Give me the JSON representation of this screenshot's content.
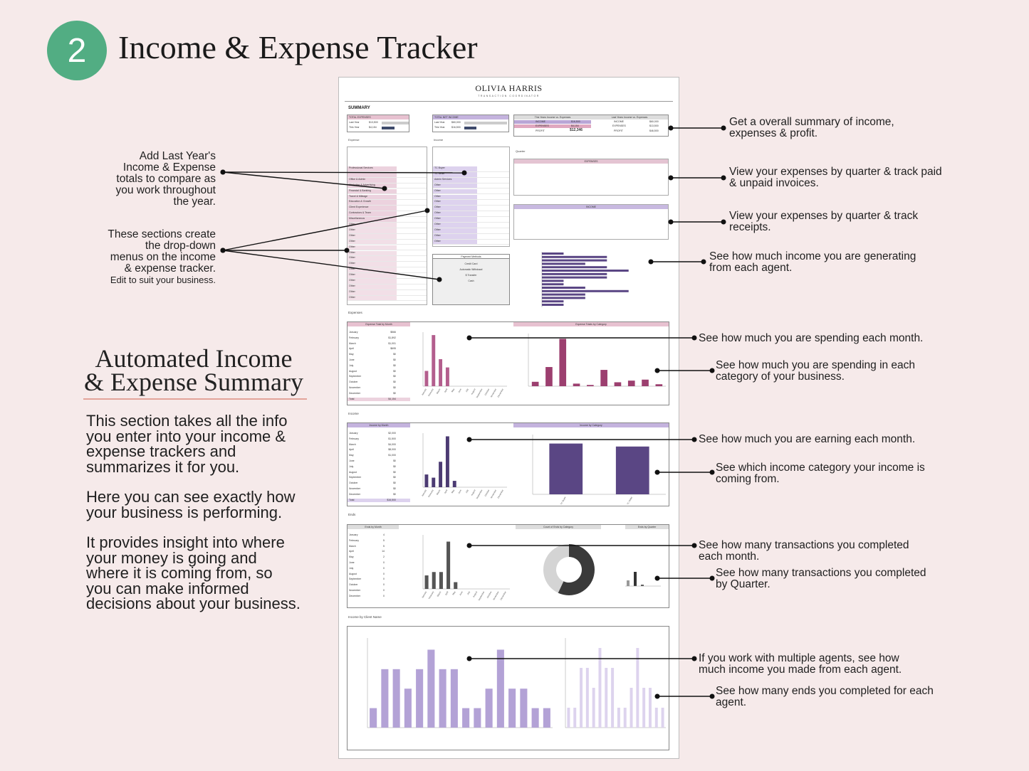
{
  "badge": {
    "number": "2",
    "color": "#52ad83"
  },
  "title": "Income & Expense Tracker",
  "brand": {
    "name": "OLIVIA HARRIS",
    "tagline": "TRANSACTION COORDINATOR"
  },
  "doc": {
    "summary_label": "SUMMARY",
    "total_expenses": "TOTAL EXPENSES",
    "total_net_income": "TOTAL NET INCOME",
    "last_year": "Last Year",
    "this_year": "This Year",
    "exp_last": "$13,500",
    "exp_this": "$4,154",
    "inc_last": "$60,000",
    "inc_this": "$16,500",
    "this_vs": "This Years Income vs. Expenses",
    "last_vs": "Last Years Income vs. Expenses",
    "income": "INCOME",
    "expenses": "EXPENSES",
    "profit": "PROFIT",
    "this_income": "$16,500",
    "this_exp": "$4,154",
    "this_profit": "$12,346",
    "last_income": "$60,000",
    "last_exp": "$13,500",
    "last_profit": "$46,500",
    "expense_label": "Expense",
    "income_label": "Income",
    "quarter_label": "Quarter",
    "payment_methods": "Payment Methods",
    "pay_items": [
      "Credit Card",
      "Automatic Withdrawl",
      "$ Transfer",
      "Cash"
    ],
    "expense_cats": [
      "Professional Services",
      "",
      "Office & Admin",
      "Marketing & Advertising",
      "Financial & Banking",
      "Travel & Mileage",
      "Education & Growth",
      "Client Experience",
      "Contractors & Team",
      "Miscellaneous",
      "Other",
      "Other",
      "Other",
      "Other",
      "Other",
      "Other",
      "Other",
      "Other",
      "Other",
      "Other",
      "Other",
      "Other",
      "Other",
      "Other"
    ],
    "income_cats": [
      "TC Buyer",
      "TC Seller",
      "Admin Services",
      "Other",
      "Other",
      "Other",
      "Other",
      "Other",
      "Other",
      "Other",
      "Other",
      "Other",
      "Other",
      "Other"
    ],
    "sections": {
      "expenses": "Expenses",
      "income": "Income",
      "ends": "Ends",
      "by_client": "Income by Client Name"
    },
    "charts": {
      "exp_by_month": "Expense Total by Month",
      "exp_by_cat": "Expense Totals by Category",
      "inc_by_month": "Income by Month",
      "inc_by_cat": "Income by Category",
      "ends_by_month": "Ends by Month",
      "ends_count_cat": "Count of Ends by Category",
      "ends_by_quarter": "Ends by Quarter"
    },
    "months": [
      "January",
      "February",
      "March",
      "April",
      "May",
      "June",
      "July",
      "August",
      "September",
      "October",
      "November",
      "December"
    ],
    "exp_month_vals": [
      "$566",
      "$1,892",
      "$1,001",
      "$695",
      "$0",
      "$0",
      "$0",
      "$0",
      "$0",
      "$0",
      "$0",
      "$0"
    ],
    "exp_month_total": "$4,154",
    "inc_month_vals": [
      "$2,000",
      "$1,500",
      "$4,000",
      "$8,000",
      "$1,000",
      "$0",
      "$0",
      "$0",
      "$0",
      "$0",
      "$0",
      "$0"
    ],
    "inc_month_total": "$16,500",
    "ends_month_vals": [
      "4",
      "5",
      "5",
      "14",
      "2",
      "0",
      "0",
      "0",
      "0",
      "0",
      "0",
      "0"
    ],
    "inc_cat_vals": [
      "$8,500.00",
      "$8,000.00"
    ],
    "inc_cat_names": [
      "TC Buyer",
      "TC Seller"
    ],
    "total_label": "Total"
  },
  "chart_data": [
    {
      "type": "bar",
      "title": "Expense Total by Month",
      "categories": [
        "January",
        "February",
        "March",
        "April",
        "May",
        "June",
        "July",
        "August",
        "September",
        "October",
        "November",
        "December"
      ],
      "values": [
        566,
        1892,
        1001,
        695,
        0,
        0,
        0,
        0,
        0,
        0,
        0,
        0
      ],
      "ylim": [
        0,
        2000
      ]
    },
    {
      "type": "bar",
      "title": "Expense Totals by Category",
      "values": [
        167.95,
        728.98,
        1800,
        98,
        48,
        620,
        150,
        212,
        250,
        75
      ]
    },
    {
      "type": "bar",
      "title": "Income by Month",
      "categories": [
        "January",
        "February",
        "March",
        "April",
        "May",
        "June",
        "July",
        "August",
        "September",
        "October",
        "November",
        "December"
      ],
      "values": [
        2000,
        1500,
        4000,
        8000,
        1000,
        0,
        0,
        0,
        0,
        0,
        0,
        0
      ],
      "ylim": [
        0,
        8000
      ]
    },
    {
      "type": "bar",
      "title": "Income by Category",
      "categories": [
        "TC Buyer",
        "TC Seller"
      ],
      "values": [
        8500,
        8000
      ],
      "ylim": [
        0,
        10000
      ]
    },
    {
      "type": "bar",
      "title": "Ends by Month",
      "categories": [
        "January",
        "February",
        "March",
        "April",
        "May",
        "June",
        "July",
        "August",
        "September",
        "October",
        "November",
        "December"
      ],
      "values": [
        4,
        5,
        5,
        14,
        2,
        0,
        0,
        0,
        0,
        0,
        0,
        0
      ]
    },
    {
      "type": "pie",
      "title": "Count of Ends by Category",
      "categories": [
        "TC Buyer",
        "TC Seller"
      ],
      "values": [
        57,
        43
      ]
    },
    {
      "type": "bar",
      "title": "Income by Client Name",
      "values": [
        500,
        1500,
        1500,
        1000,
        1500,
        2000,
        1500,
        1500,
        500,
        500,
        1000,
        2000,
        1000,
        1000,
        500,
        500
      ]
    },
    {
      "type": "bar",
      "title": "Ends by Client Name",
      "values": [
        1,
        1,
        3,
        3,
        2,
        4,
        3,
        3,
        1,
        1,
        2,
        4,
        2,
        2,
        1,
        1
      ]
    }
  ],
  "left_notes": {
    "last_year": "Add Last Year's\nIncome & Expense\ntotals to compare as\nyou work throughout\nthe year.",
    "dropdown": "These sections create\nthe drop-down\nmenus on the income\n& expense tracker.",
    "edit": "Edit to suit your business."
  },
  "auto": {
    "title": "Automated Income\n& Expense Summary",
    "p1": "This section takes all the info\nyou enter into your income &\nexpense trackers and\nsummarizes it for you.",
    "p2": "Here you can see exactly how\nyour business is performing.",
    "p3": "It provides insight into where\nyour money is going and\nwhere it is coming from, so\nyou can make informed\ndecisions about your business."
  },
  "right_notes": [
    "Get a overall summary of income,\nexpenses & profit.",
    "View your expenses by quarter & track paid\n& unpaid invoices.",
    "View your expenses by quarter & track\nreceipts.",
    "See how much income you are generating\nfrom each agent.",
    "See how much you are spending each month.",
    "See how much you are spending in each\ncategory of your business.",
    "See how much you are earning each month.",
    "See which income category your income is\ncoming from.",
    "See how many transactions you completed\neach month.",
    "See how many transactions you completed\nby Quarter.",
    "If you work with multiple agents, see how\nmuch income you made from each agent.",
    "See how many ends you completed for each\nagent."
  ]
}
